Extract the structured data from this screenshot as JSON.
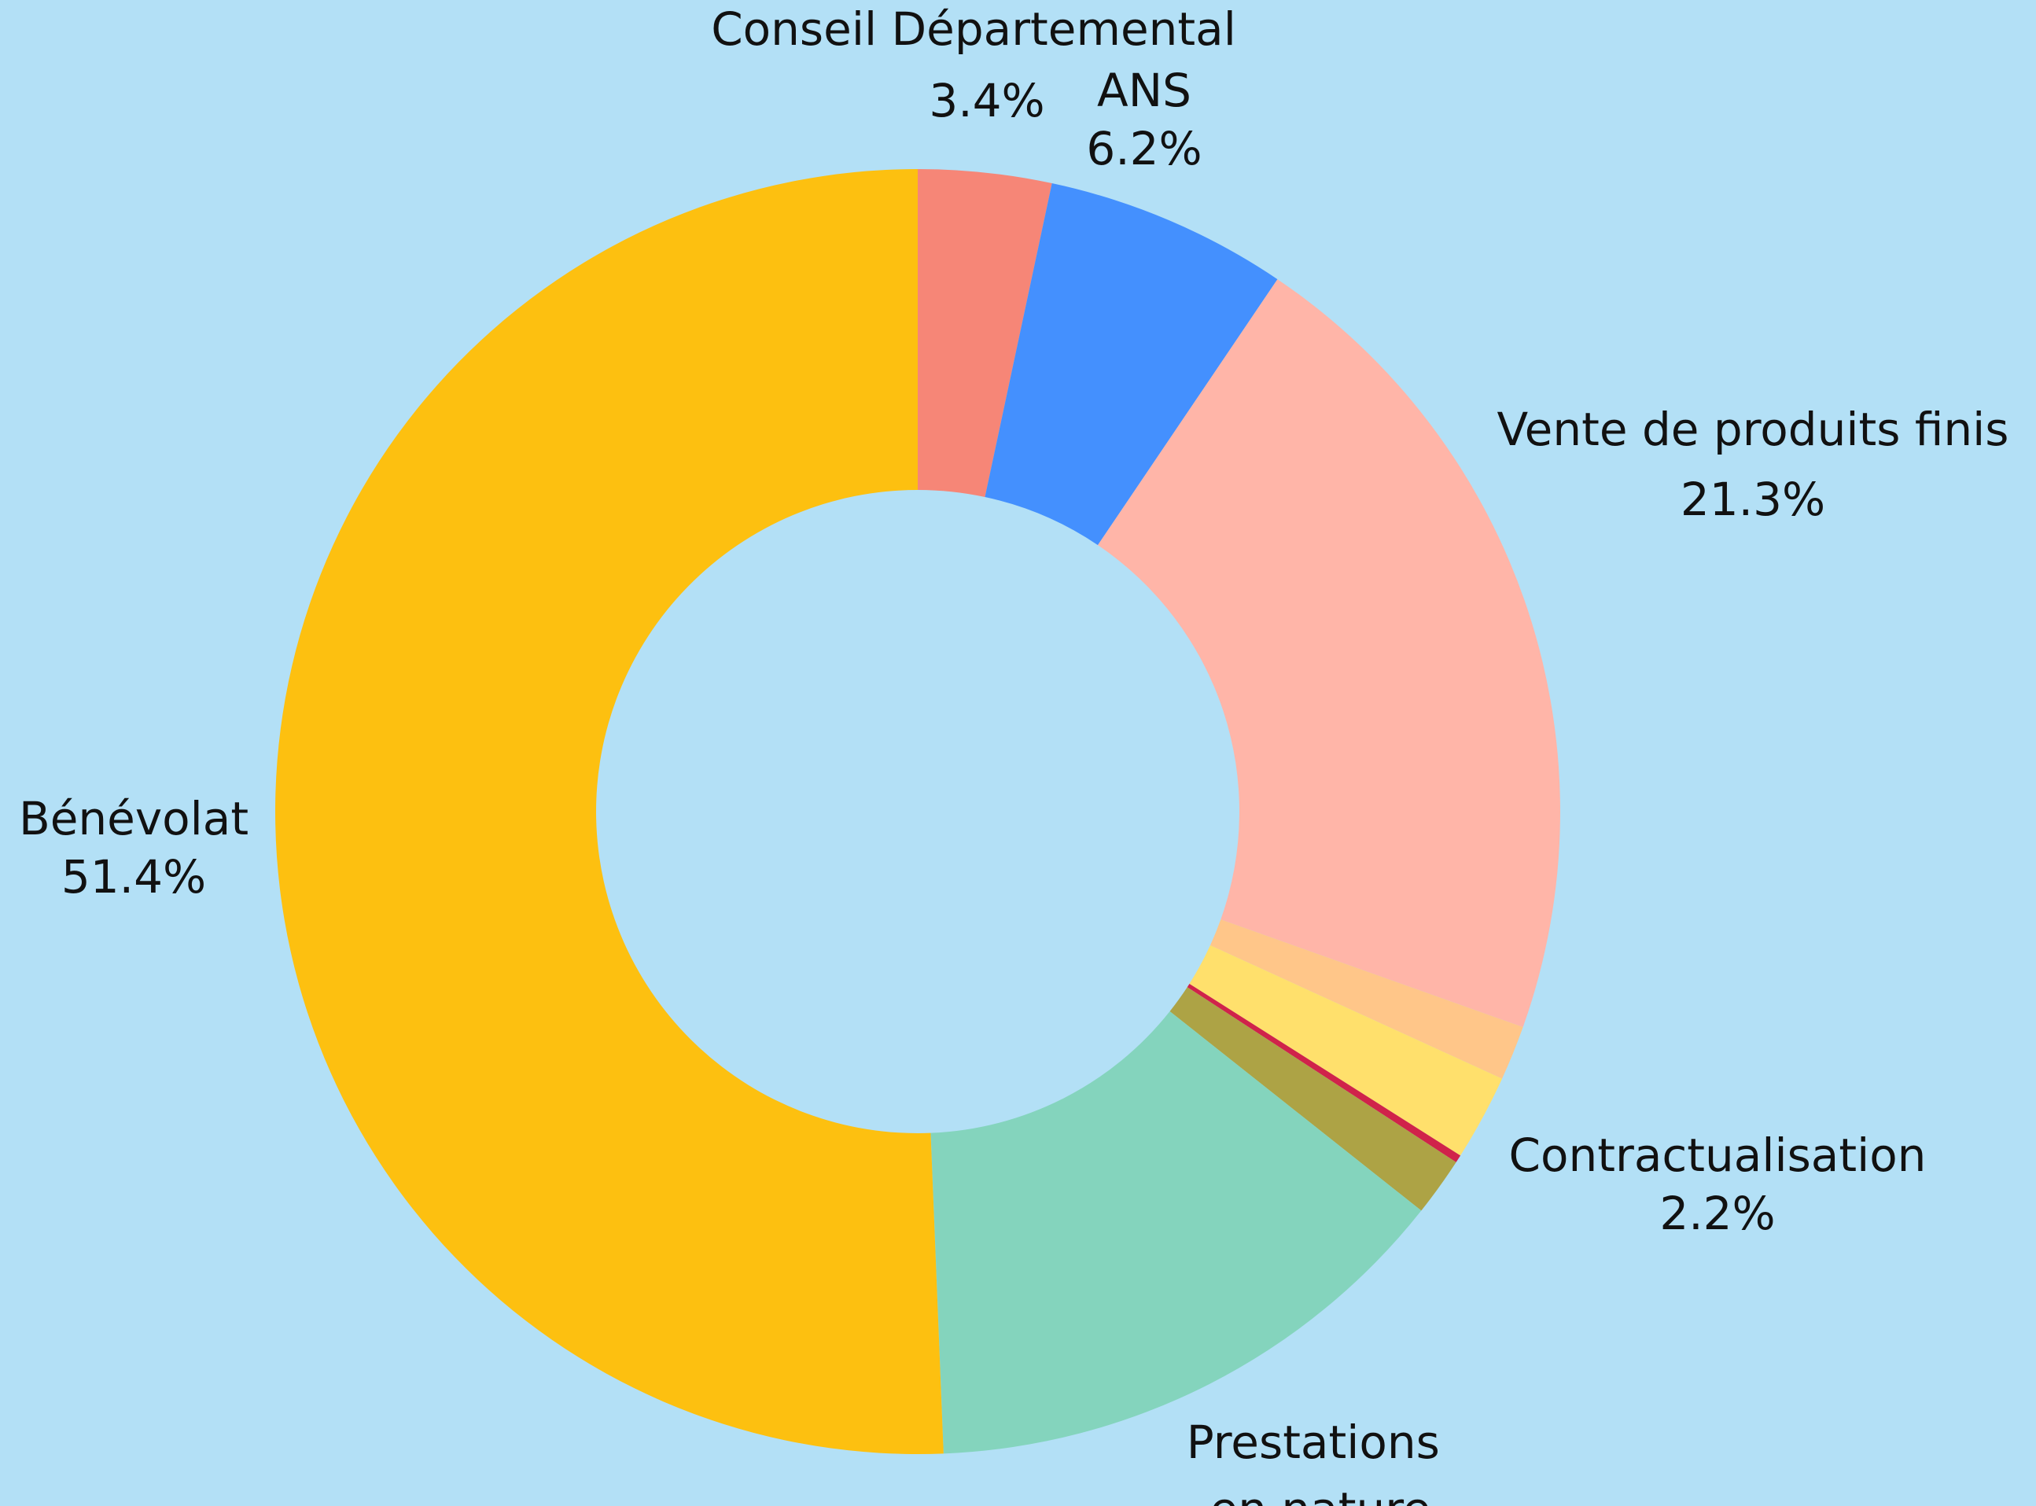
{
  "chart_data": {
    "type": "donut",
    "categories": [
      "Conseil Départemental",
      "ANS",
      "Vente de produits finis",
      null,
      "Contractualisation",
      null,
      null,
      "Prestations en nature",
      "Bénévolat"
    ],
    "values": [
      3.4,
      6.2,
      21.3,
      1.4,
      2.2,
      0.2,
      1.5,
      13.9,
      51.4
    ],
    "value_labels": [
      "3.4%",
      "6.2%",
      "21.3%",
      null,
      "2.2%",
      null,
      null,
      null,
      "51.4%"
    ],
    "colors": [
      "#f68677",
      "#4490fe",
      "#ffb5a8",
      "#ffc689",
      "#ffe06c",
      "#d0234a",
      "#ada345",
      "#84d4bd",
      "#fdc010"
    ]
  }
}
